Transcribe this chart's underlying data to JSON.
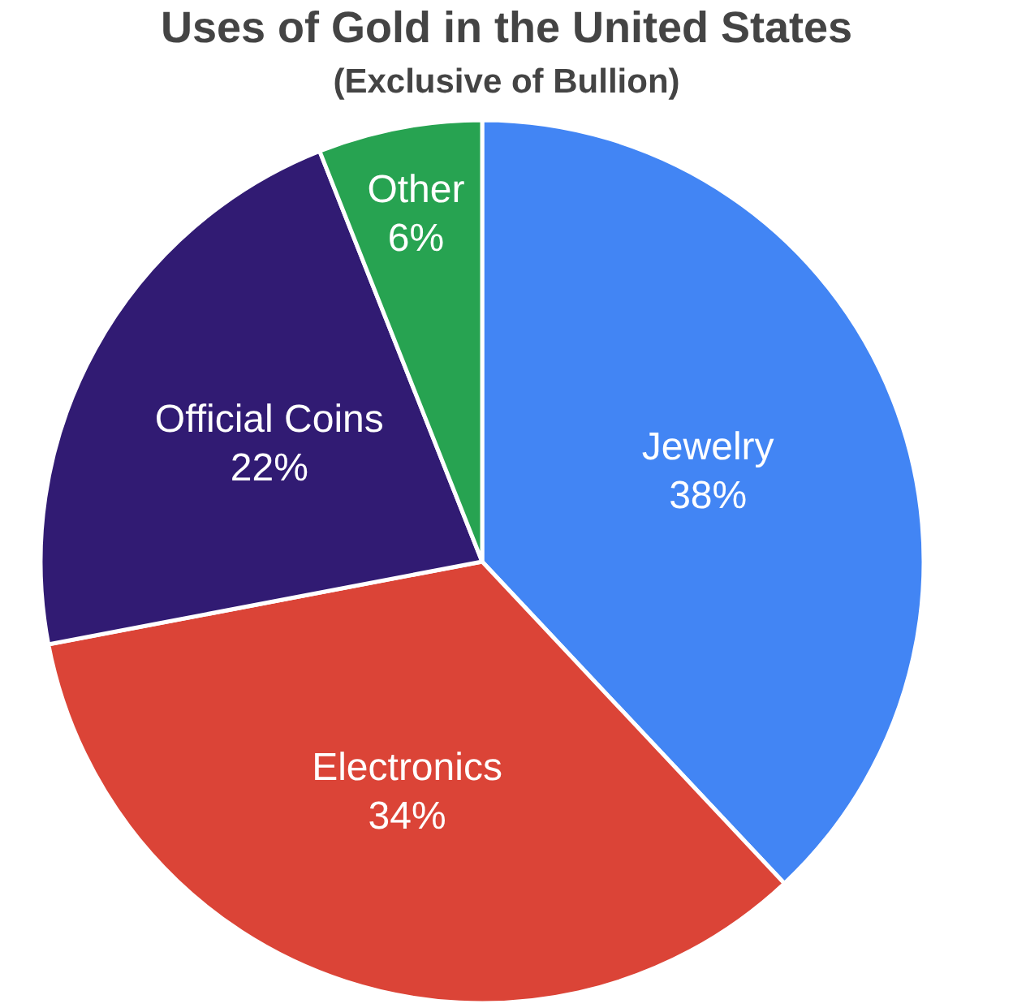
{
  "chart_data": {
    "type": "pie",
    "title": "Uses of Gold in the United States",
    "subtitle": "(Exclusive of Bullion)",
    "categories": [
      "Jewelry",
      "Electronics",
      "Official Coins",
      "Other"
    ],
    "values": [
      38,
      34,
      22,
      6
    ],
    "value_labels": [
      "38%",
      "34%",
      "22%",
      "6%"
    ],
    "colors": [
      "#4285f4",
      "#db4437",
      "#311b73",
      "#27a351"
    ],
    "legend": false
  }
}
